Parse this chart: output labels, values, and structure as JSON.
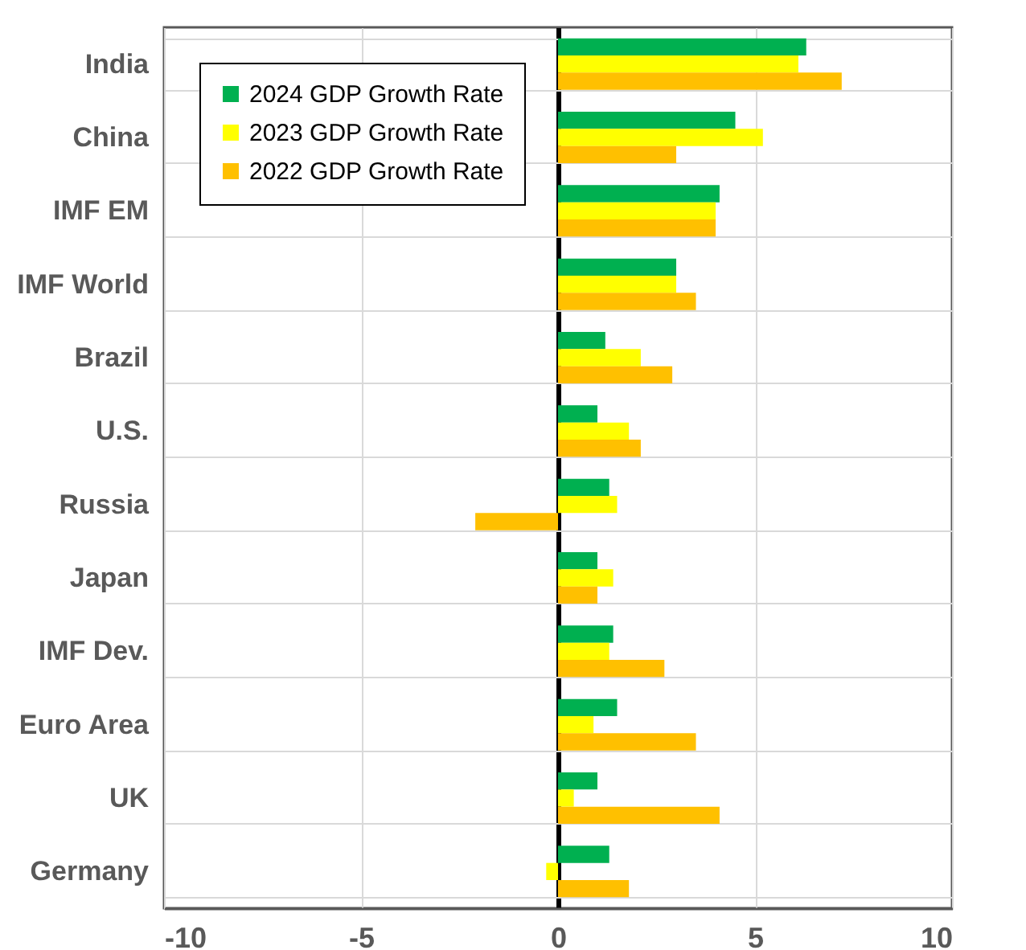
{
  "chart_data": {
    "type": "bar",
    "orientation": "horizontal",
    "categories": [
      "India",
      "China",
      "IMF EM",
      "IMF World",
      "Brazil",
      "U.S.",
      "Russia",
      "Japan",
      "IMF Dev.",
      "Euro Area",
      "UK",
      "Germany"
    ],
    "series": [
      {
        "name": "2024 GDP Growth Rate",
        "color": "#00b050",
        "values": [
          6.3,
          4.5,
          4.1,
          3.0,
          1.2,
          1.0,
          1.3,
          1.0,
          1.4,
          1.5,
          1.0,
          1.3
        ]
      },
      {
        "name": "2023 GDP Growth Rate",
        "color": "#ffff00",
        "values": [
          6.1,
          5.2,
          4.0,
          3.0,
          2.1,
          1.8,
          1.5,
          1.4,
          1.3,
          0.9,
          0.4,
          -0.3
        ]
      },
      {
        "name": "2022 GDP Growth Rate",
        "color": "#ffc000",
        "values": [
          7.2,
          3.0,
          4.0,
          3.5,
          2.9,
          2.1,
          -2.1,
          1.0,
          2.7,
          3.5,
          4.1,
          1.8
        ]
      }
    ],
    "xlim": [
      -10,
      10
    ],
    "xticks": [
      -10,
      -5,
      0,
      5,
      10
    ],
    "grid": true,
    "legend": "top left"
  }
}
